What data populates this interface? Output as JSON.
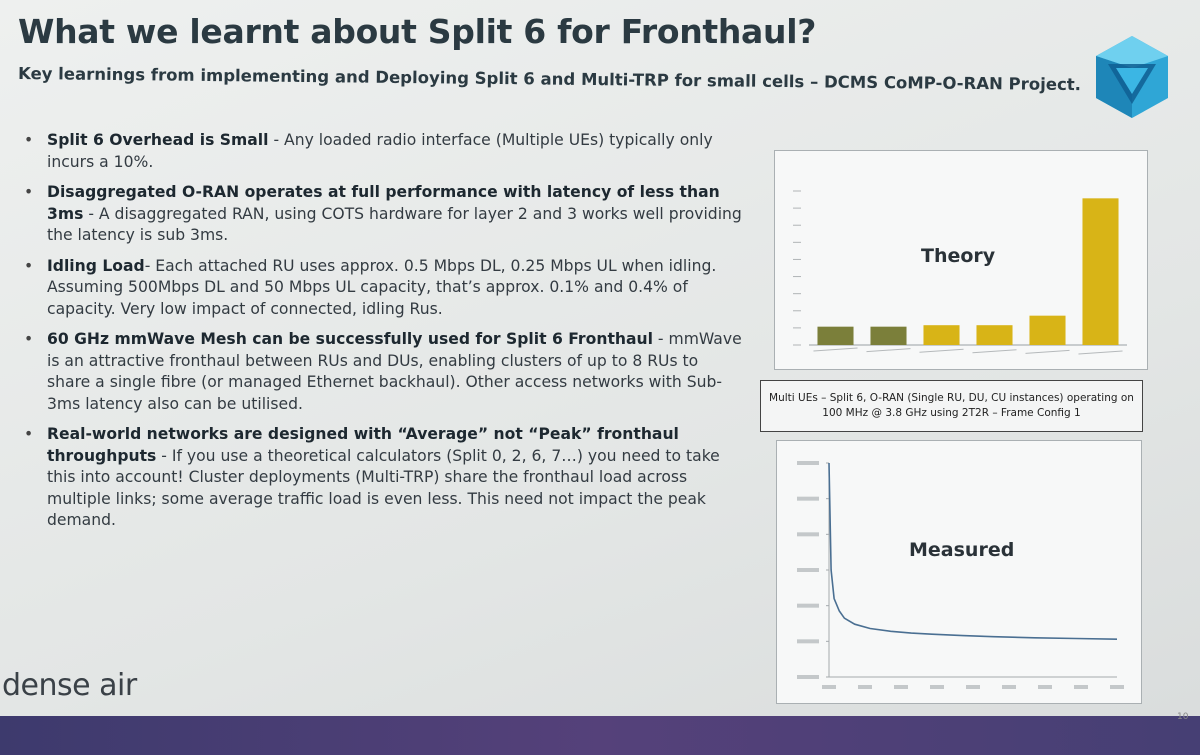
{
  "slide": {
    "title": "What we learnt about Split 6 for Fronthaul?",
    "subtitle": "Key learnings from implementing and Deploying Split 6 and Multi-TRP for small cells – DCMS CoMP-O-RAN Project.",
    "brand": "dense air",
    "page_number": "10"
  },
  "bullets": [
    {
      "heading": "Split 6 Overhead is Small",
      "text": " - Any loaded radio interface (Multiple UEs) typically only incurs a 10%."
    },
    {
      "heading": "Disaggregated O-RAN operates at full performance with latency of less than 3ms",
      "text": " - A disaggregated RAN, using COTS hardware for layer 2 and 3 works well providing the latency is sub 3ms."
    },
    {
      "heading": "Idling Load",
      "text": "- Each attached RU uses approx. 0.5 Mbps DL, 0.25 Mbps UL when idling. Assuming 500Mbps DL and 50 Mbps UL capacity, that’s approx. 0.1% and 0.4% of capacity. Very low impact of connected, idling Rus."
    },
    {
      "heading": "60 GHz mmWave Mesh can be successfully used for Split 6 Fronthaul",
      "text": " - mmWave is an attractive fronthaul between RUs and DUs, enabling clusters of up to 8 RUs to share a single fibre (or managed Ethernet backhaul). Other access networks with Sub-3ms latency also can be utilised."
    },
    {
      "heading": "Real-world networks are designed with “Average” not “Peak” fronthaul throughputs",
      "text": " - If you use a theoretical calculators (Split 0, 2, 6, 7…) you need to take this into account! Cluster deployments (Multi-TRP) share the fronthaul load across multiple links; some average traffic load is even less. This need not impact the peak demand."
    }
  ],
  "theory_chart": {
    "label": "Theory"
  },
  "caption": "Multi UEs – Split 6, O-RAN (Single RU, DU, CU instances) operating on 100 MHz @ 3.8 GHz using 2T2R – Frame Config 1",
  "measured_chart": {
    "label": "Measured"
  },
  "colors": {
    "title": "#2b3a42",
    "bar_green": "#7b7f3a",
    "bar_yellow": "#d8b417",
    "footer": "#4a3f78",
    "logo": "#2fa6d6"
  },
  "chart_data": [
    {
      "type": "bar",
      "title": "",
      "categories": [
        "",
        "",
        "",
        "",
        "",
        ""
      ],
      "values": [
        2.5,
        2.5,
        2.7,
        2.7,
        4.0,
        20.0
      ],
      "bar_colors": [
        "#7b7f3a",
        "#7b7f3a",
        "#d8b417",
        "#d8b417",
        "#d8b417",
        "#d8b417"
      ],
      "ylim": [
        0,
        21
      ],
      "grid": false
    },
    {
      "type": "line",
      "title": "",
      "x": [
        0,
        2,
        5,
        10,
        15,
        25,
        40,
        60,
        80,
        100,
        130,
        160,
        200,
        240,
        280
      ],
      "series": [
        {
          "values": [
            60,
            30,
            22,
            18.5,
            16.5,
            14.8,
            13.6,
            12.8,
            12.3,
            12.0,
            11.6,
            11.3,
            11.0,
            10.8,
            10.6
          ]
        }
      ],
      "xlim": [
        0,
        280
      ],
      "ylim": [
        0,
        60
      ],
      "grid": false
    }
  ]
}
